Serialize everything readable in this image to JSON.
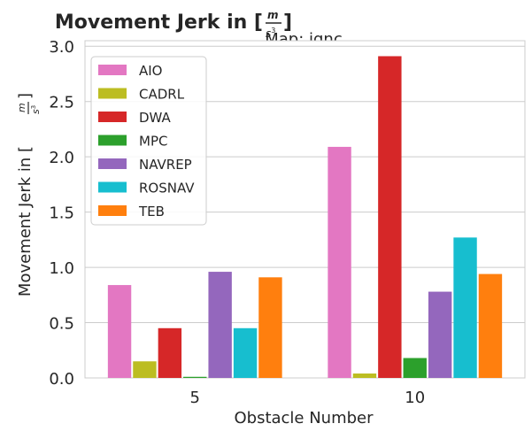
{
  "chart_data": {
    "type": "bar",
    "title_main": "Movement Jerk in [",
    "title_unit_num": "m",
    "title_unit_den_base": "s",
    "title_unit_den_exp": "3",
    "title_close": "]",
    "subtitle": "Map: ignc",
    "xlabel": "Obstacle Number",
    "ylabel_main": "Movement Jerk in [",
    "ylabel_unit_num": "m",
    "ylabel_unit_den_base": "s",
    "ylabel_unit_den_exp": "3",
    "ylabel_close": "]",
    "categories": [
      "5",
      "10"
    ],
    "ylim": [
      0,
      3.05
    ],
    "yticks": [
      0.0,
      0.5,
      1.0,
      1.5,
      2.0,
      2.5,
      3.0
    ],
    "ytick_labels": [
      "0.0",
      "0.5",
      "1.0",
      "1.5",
      "2.0",
      "2.5",
      "3.0"
    ],
    "grid": true,
    "legend_position": "top-left",
    "series": [
      {
        "name": "AIO",
        "color": "#e377c2",
        "values": [
          0.84,
          2.09
        ]
      },
      {
        "name": "CADRL",
        "color": "#bcbd22",
        "values": [
          0.15,
          0.04
        ]
      },
      {
        "name": "DWA",
        "color": "#d62728",
        "values": [
          0.45,
          2.91
        ]
      },
      {
        "name": "MPC",
        "color": "#2ca02c",
        "values": [
          0.01,
          0.18
        ]
      },
      {
        "name": "NAVREP",
        "color": "#9467bd",
        "values": [
          0.96,
          0.78
        ]
      },
      {
        "name": "ROSNAV",
        "color": "#17becf",
        "values": [
          0.45,
          1.27
        ]
      },
      {
        "name": "TEB",
        "color": "#ff7f0e",
        "values": [
          0.91,
          0.94
        ]
      }
    ]
  }
}
